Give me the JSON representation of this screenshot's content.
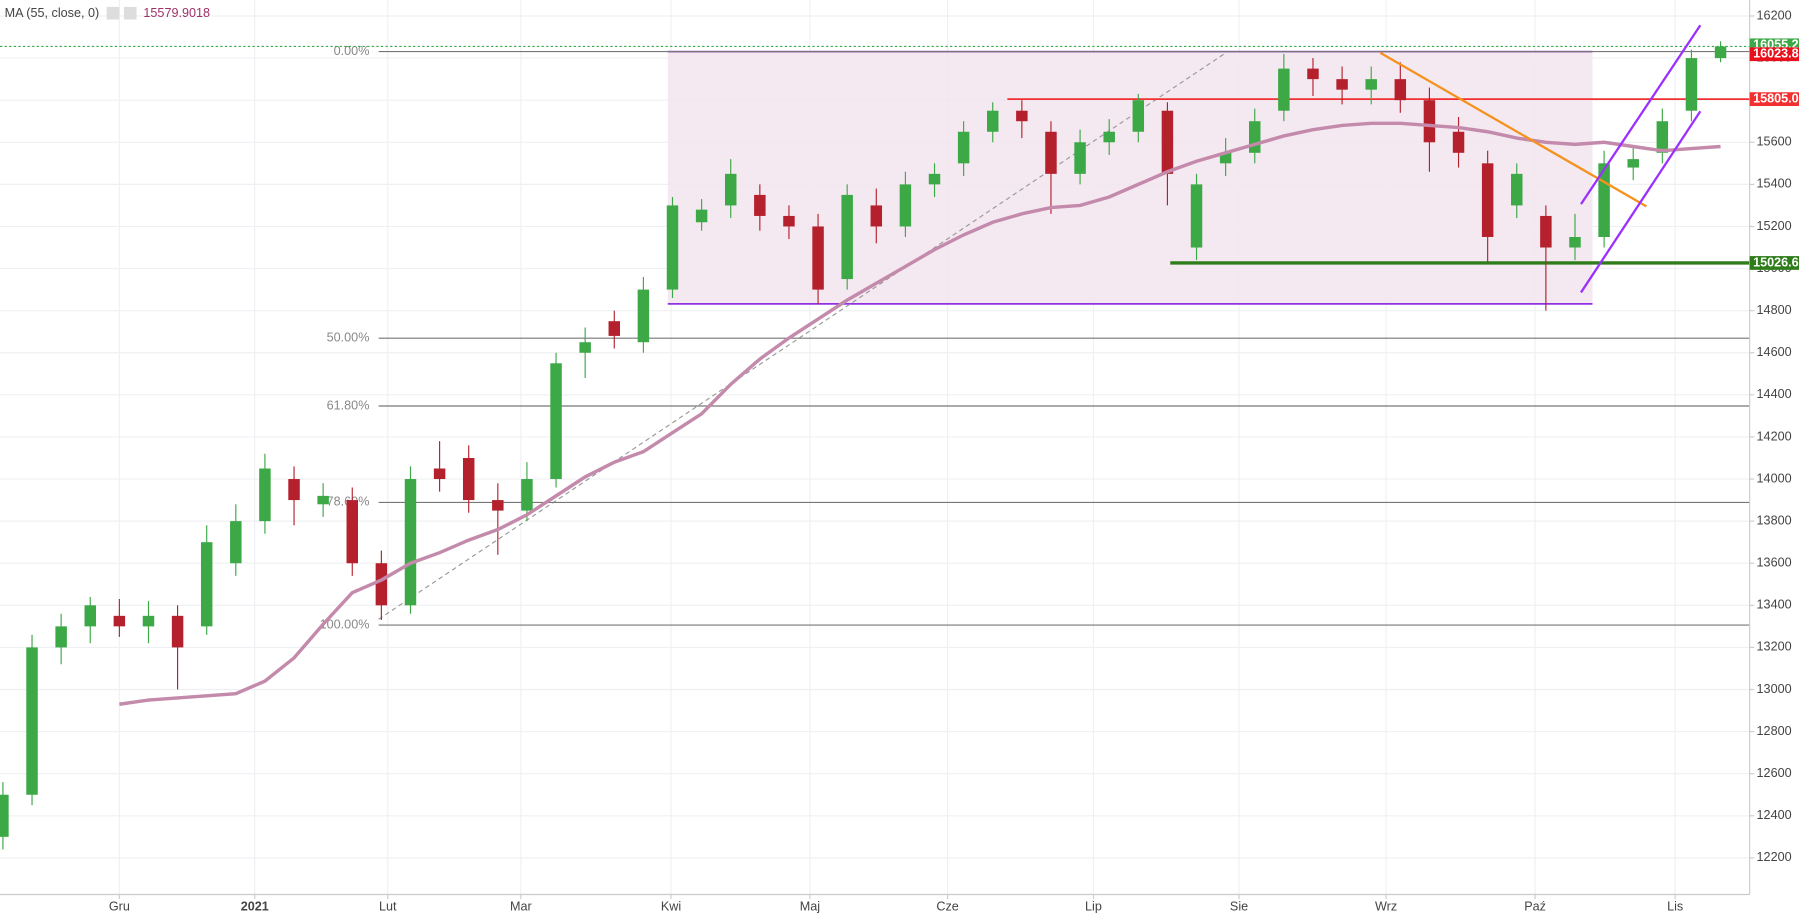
{
  "chart_data": {
    "type": "candlestick",
    "indicator": {
      "name": "MA (55, close, 0)",
      "value": 15579.9018,
      "color": "#a0306a"
    },
    "x": [
      0,
      1,
      2,
      3,
      4,
      5,
      6,
      7,
      8,
      9,
      10,
      11,
      12,
      13,
      14,
      15,
      16,
      17,
      18,
      19,
      20,
      21,
      22,
      23,
      24,
      25,
      26,
      27,
      28,
      29,
      30,
      31,
      32,
      33,
      34,
      35,
      36,
      37,
      38,
      39,
      40,
      41,
      42,
      43,
      44,
      45,
      46,
      47,
      48,
      49,
      50,
      51,
      52,
      53,
      54,
      55,
      56,
      57,
      58,
      59
    ],
    "open": [
      12300,
      12500,
      13200,
      13300,
      13350,
      13300,
      13350,
      13300,
      13600,
      13800,
      14000,
      13880,
      13900,
      13600,
      13400,
      14050,
      14100,
      13900,
      13850,
      14000,
      14600,
      14750,
      14650,
      14900,
      15220,
      15300,
      15350,
      15250,
      15200,
      14950,
      15300,
      15200,
      15400,
      15500,
      15650,
      15750,
      15650,
      15450,
      15600,
      15650,
      15750,
      15100,
      15500,
      15550,
      15750,
      15950,
      15900,
      15850,
      15900,
      15800,
      15650,
      15500,
      15300,
      15250,
      15100,
      15150,
      15480,
      15550,
      15750,
      16000
    ],
    "high": [
      12560,
      13260,
      13360,
      13440,
      13430,
      13420,
      13400,
      13780,
      13880,
      14120,
      14060,
      13980,
      13960,
      13660,
      14060,
      14180,
      14160,
      13980,
      14080,
      14600,
      14720,
      14800,
      14960,
      15340,
      15330,
      15520,
      15400,
      15300,
      15260,
      15400,
      15380,
      15460,
      15500,
      15700,
      15790,
      15800,
      15700,
      15660,
      15710,
      15830,
      15790,
      15450,
      15620,
      15760,
      16020,
      16000,
      15960,
      15960,
      15980,
      15860,
      15720,
      15560,
      15500,
      15300,
      15260,
      15560,
      15580,
      15760,
      16040,
      16080
    ],
    "low": [
      12240,
      12450,
      13120,
      13220,
      13250,
      13220,
      13000,
      13260,
      13540,
      13740,
      13780,
      13820,
      13540,
      13330,
      13360,
      13940,
      13840,
      13640,
      13800,
      13960,
      14480,
      14620,
      14600,
      14860,
      15180,
      15240,
      15180,
      15140,
      14830,
      14900,
      15120,
      15150,
      15340,
      15440,
      15600,
      15620,
      15260,
      15400,
      15540,
      15600,
      15300,
      15040,
      15440,
      15500,
      15700,
      15820,
      15780,
      15780,
      15740,
      15460,
      15480,
      15030,
      15240,
      14800,
      15040,
      15100,
      15420,
      15500,
      15700,
      15980
    ],
    "close": [
      12500,
      13200,
      13300,
      13400,
      13300,
      13350,
      13200,
      13700,
      13800,
      14050,
      13900,
      13920,
      13600,
      13400,
      14000,
      14000,
      13900,
      13850,
      14000,
      14550,
      14650,
      14680,
      14900,
      15300,
      15280,
      15450,
      15250,
      15200,
      14900,
      15350,
      15200,
      15400,
      15450,
      15650,
      15750,
      15700,
      15450,
      15600,
      15650,
      15800,
      15450,
      15400,
      15550,
      15700,
      15950,
      15900,
      15850,
      15900,
      15800,
      15600,
      15550,
      15150,
      15450,
      15100,
      15150,
      15500,
      15520,
      15700,
      16000,
      16055.2
    ],
    "up_color": "#3ca846",
    "down_color": "#b5202d",
    "series": [
      {
        "name": "MA (55, close, 0)",
        "color": "#c48aab",
        "values": [
          null,
          null,
          null,
          null,
          12930,
          12950,
          12960,
          12970,
          12980,
          13040,
          13150,
          13310,
          13460,
          13520,
          13600,
          13650,
          13710,
          13760,
          13830,
          13920,
          14010,
          14080,
          14130,
          14220,
          14310,
          14450,
          14570,
          14670,
          14760,
          14850,
          14930,
          15010,
          15090,
          15160,
          15220,
          15260,
          15290,
          15300,
          15340,
          15400,
          15460,
          15510,
          15550,
          15590,
          15630,
          15660,
          15680,
          15690,
          15690,
          15680,
          15670,
          15650,
          15620,
          15600,
          15590,
          15600,
          15580,
          15560,
          15570,
          15579.9018
        ]
      }
    ],
    "xlim": [
      -0.1,
      60
    ],
    "xticks": [
      {
        "value": 4.0,
        "label": "Gru"
      },
      {
        "value": 8.65,
        "label": "2021"
      },
      {
        "value": 13.22,
        "label": "Lut"
      },
      {
        "value": 17.79,
        "label": "Mar"
      },
      {
        "value": 22.95,
        "label": "Kwi"
      },
      {
        "value": 27.72,
        "label": "Maj"
      },
      {
        "value": 32.45,
        "label": "Cze"
      },
      {
        "value": 37.46,
        "label": "Lip"
      },
      {
        "value": 42.46,
        "label": "Sie"
      },
      {
        "value": 47.51,
        "label": "Wrz"
      },
      {
        "value": 52.63,
        "label": "Paź"
      },
      {
        "value": 57.44,
        "label": "Lis"
      }
    ],
    "ylim": [
      12026,
      16276
    ],
    "yticks": [
      12200,
      12400,
      12600,
      12800,
      13000,
      13200,
      13400,
      13600,
      13800,
      14000,
      14200,
      14400,
      14600,
      14800,
      15000,
      15200,
      15400,
      15600,
      15800,
      16000,
      16200
    ],
    "grid": true,
    "fib_levels": [
      {
        "value": 16031,
        "label": "0.00%"
      },
      {
        "value": 14669,
        "label": "50.00%"
      },
      {
        "value": 14347,
        "label": "61.80%"
      },
      {
        "value": 13889,
        "label": "78.60%"
      },
      {
        "value": 13306,
        "label": "100.00%"
      }
    ],
    "price_lines": [
      {
        "value": 16055.2,
        "color": "#3ca846"
      },
      {
        "value": 16023.8,
        "color": "#e8101a"
      },
      {
        "value": 15805,
        "label": "15805.0",
        "color": "#f23030"
      },
      {
        "value": 15026.6,
        "color": "#2e7d1a"
      }
    ]
  }
}
